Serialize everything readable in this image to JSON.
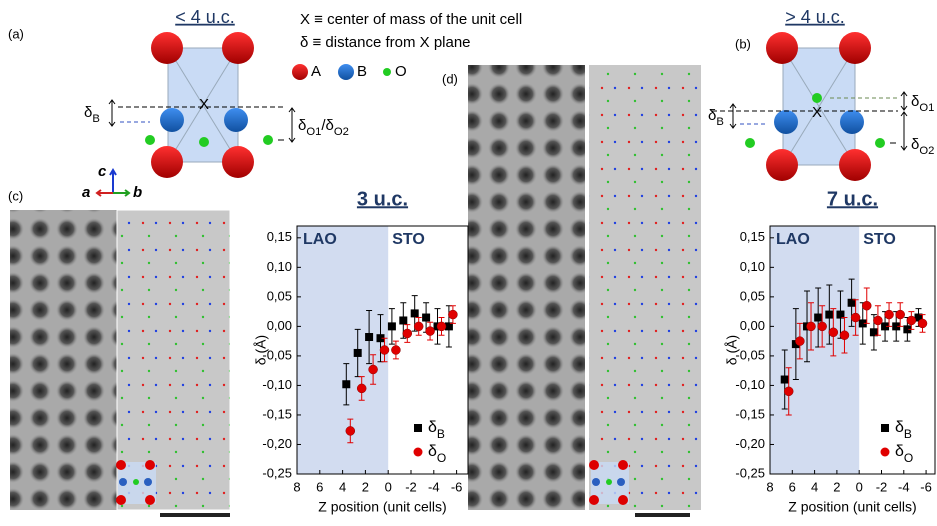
{
  "panels": {
    "a": "(a)",
    "b": "(b)",
    "c": "(c)",
    "d": "(d)"
  },
  "diagram": {
    "title_a": "< 4 u.c.",
    "title_b": "> 4 u.c.",
    "def_x": "X ≡ center of mass of the unit cell",
    "def_delta": "δ ≡ distance from X plane",
    "legend": {
      "a": "A",
      "b": "B",
      "o": "O"
    },
    "x_mark": "X",
    "label_b": "δB",
    "label_o12": "δO1/δO2",
    "label_o1": "δO1",
    "label_o2": "δO2",
    "axes": {
      "c": "c",
      "a": "a",
      "b": "b"
    }
  },
  "chart_data": [
    {
      "type": "scatter",
      "title": "3 u.c.",
      "x_label": "Z position (unit cells)",
      "y_label": "δ (Å)",
      "regions": [
        "LAO",
        "STO"
      ],
      "shaded_xrange": [
        8,
        0
      ],
      "xlim": [
        8,
        -7
      ],
      "ylim": [
        -0.25,
        0.17
      ],
      "xticks": [
        8,
        6,
        4,
        2,
        0,
        -2,
        -4,
        -6
      ],
      "yticks": [
        {
          "value": 0.15,
          "label": "0,15"
        },
        {
          "value": 0.1,
          "label": "0,10"
        },
        {
          "value": 0.05,
          "label": "0,05"
        },
        {
          "value": 0,
          "label": "0,00"
        },
        {
          "value": -0.05,
          "label": "-0,05"
        },
        {
          "value": -0.1,
          "label": "-0,10"
        },
        {
          "value": -0.15,
          "label": "-0,15"
        },
        {
          "value": -0.2,
          "label": "-0,20"
        },
        {
          "value": -0.25,
          "label": "-0,25"
        }
      ],
      "x": [
        3.5,
        2.5,
        1.5,
        0.5,
        -0.5,
        -1.5,
        -2.5,
        -3.5,
        -4.5,
        -5.5
      ],
      "series": [
        {
          "name": "δB",
          "color": "#000000",
          "marker": "square",
          "values": [
            -0.098,
            -0.045,
            -0.018,
            -0.02,
            0.0,
            0.01,
            0.022,
            0.015,
            0.0,
            0.0
          ],
          "errors": [
            0.035,
            0.04,
            0.045,
            0.04,
            0.03,
            0.03,
            0.03,
            0.025,
            0.03,
            0.035
          ]
        },
        {
          "name": "δO",
          "color": "#e00000",
          "marker": "circle",
          "values": [
            -0.177,
            -0.105,
            -0.073,
            -0.04,
            -0.04,
            -0.012,
            0.0,
            -0.008,
            0.0,
            0.02
          ],
          "errors": [
            0.02,
            0.02,
            0.025,
            0.02,
            0.015,
            0.015,
            0.015,
            0.015,
            0.015,
            0.015
          ]
        }
      ]
    },
    {
      "type": "scatter",
      "title": "7 u.c.",
      "x_label": "Z position (unit cells)",
      "y_label": "δ (Å)",
      "regions": [
        "LAO",
        "STO"
      ],
      "shaded_xrange": [
        8,
        0
      ],
      "xlim": [
        8,
        -6.8
      ],
      "ylim": [
        -0.25,
        0.17
      ],
      "xticks": [
        8,
        6,
        4,
        2,
        0,
        -2,
        -4,
        -6
      ],
      "yticks": [
        {
          "value": 0.15,
          "label": "0,15"
        },
        {
          "value": 0.1,
          "label": "0,10"
        },
        {
          "value": 0.05,
          "label": "0,05"
        },
        {
          "value": 0,
          "label": "0,00"
        },
        {
          "value": -0.05,
          "label": "-0,05"
        },
        {
          "value": -0.1,
          "label": "-0,10"
        },
        {
          "value": -0.15,
          "label": "-0,15"
        },
        {
          "value": -0.2,
          "label": "-0,20"
        },
        {
          "value": -0.25,
          "label": "-0,25"
        }
      ],
      "x": [
        6.5,
        5.5,
        4.5,
        3.5,
        2.5,
        1.5,
        0.5,
        -0.5,
        -1.5,
        -2.5,
        -3.5,
        -4.5,
        -5.5
      ],
      "series": [
        {
          "name": "δB",
          "color": "#000000",
          "marker": "square",
          "values": [
            -0.09,
            -0.03,
            0.0,
            0.015,
            0.02,
            0.02,
            0.04,
            0.005,
            -0.01,
            0.0,
            0.0,
            -0.005,
            0.015
          ],
          "errors": [
            0.05,
            0.06,
            0.06,
            0.05,
            0.05,
            0.04,
            0.04,
            0.035,
            0.03,
            0.025,
            0.025,
            0.02,
            0.015
          ]
        },
        {
          "name": "δO",
          "color": "#e00000",
          "marker": "circle",
          "values": [
            -0.11,
            -0.025,
            0.0,
            0.0,
            -0.01,
            -0.015,
            0.015,
            0.035,
            0.01,
            0.02,
            0.02,
            0.01,
            0.005
          ],
          "errors": [
            0.04,
            0.03,
            0.04,
            0.035,
            0.04,
            0.03,
            0.03,
            0.03,
            0.025,
            0.02,
            0.02,
            0.015,
            0.015
          ]
        }
      ]
    }
  ]
}
